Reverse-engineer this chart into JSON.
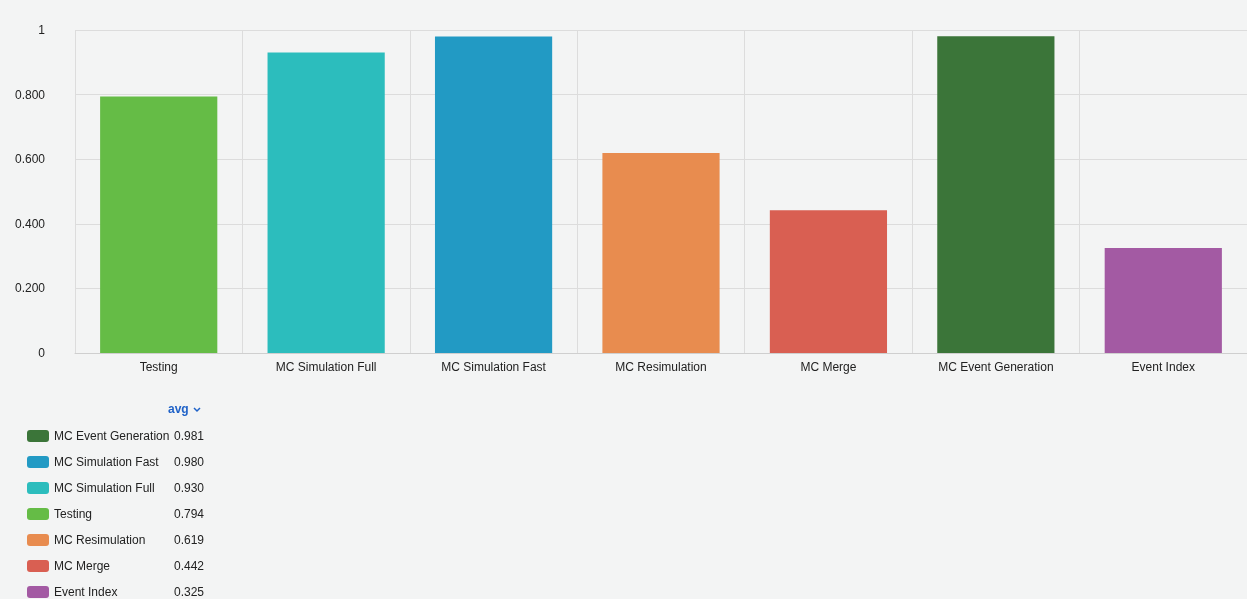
{
  "chart_data": {
    "type": "bar",
    "categories": [
      "Testing",
      "MC Simulation Full",
      "MC Simulation Fast",
      "MC Resimulation",
      "MC Merge",
      "MC Event Generation",
      "Event Index"
    ],
    "series": [
      {
        "name": "Testing",
        "color": "#65bc46",
        "values": [
          0.794,
          null,
          null,
          null,
          null,
          null,
          null
        ]
      },
      {
        "name": "MC Simulation Full",
        "color": "#2cbdbd",
        "values": [
          null,
          0.93,
          null,
          null,
          null,
          null,
          null
        ]
      },
      {
        "name": "MC Simulation Fast",
        "color": "#229ac4",
        "values": [
          null,
          null,
          0.98,
          null,
          null,
          null,
          null
        ]
      },
      {
        "name": "MC Resimulation",
        "color": "#e88c4f",
        "values": [
          null,
          null,
          null,
          0.619,
          null,
          null,
          null
        ]
      },
      {
        "name": "MC Merge",
        "color": "#d95f52",
        "values": [
          null,
          null,
          null,
          null,
          0.442,
          null,
          null
        ]
      },
      {
        "name": "MC Event Generation",
        "color": "#3b7539",
        "values": [
          null,
          null,
          null,
          null,
          null,
          0.981,
          null
        ]
      },
      {
        "name": "Event Index",
        "color": "#a35aa3",
        "values": [
          null,
          null,
          null,
          null,
          null,
          null,
          0.325
        ]
      }
    ],
    "annotations": [
      "0.794",
      "0.930",
      "0.980",
      "0.619",
      "0.442",
      "0.981",
      "0.325"
    ],
    "stacked": true,
    "ylim": [
      0,
      1
    ],
    "yticks": [
      0,
      {
        "value": 0.2,
        "label": "0.200"
      },
      {
        "value": 0.4,
        "label": "0.400"
      },
      {
        "value": 0.6,
        "label": "0.600"
      },
      {
        "value": 0.8,
        "label": "0.800"
      },
      1
    ],
    "grid": true,
    "legend": "bottom left",
    "legend_title": "avg"
  }
}
